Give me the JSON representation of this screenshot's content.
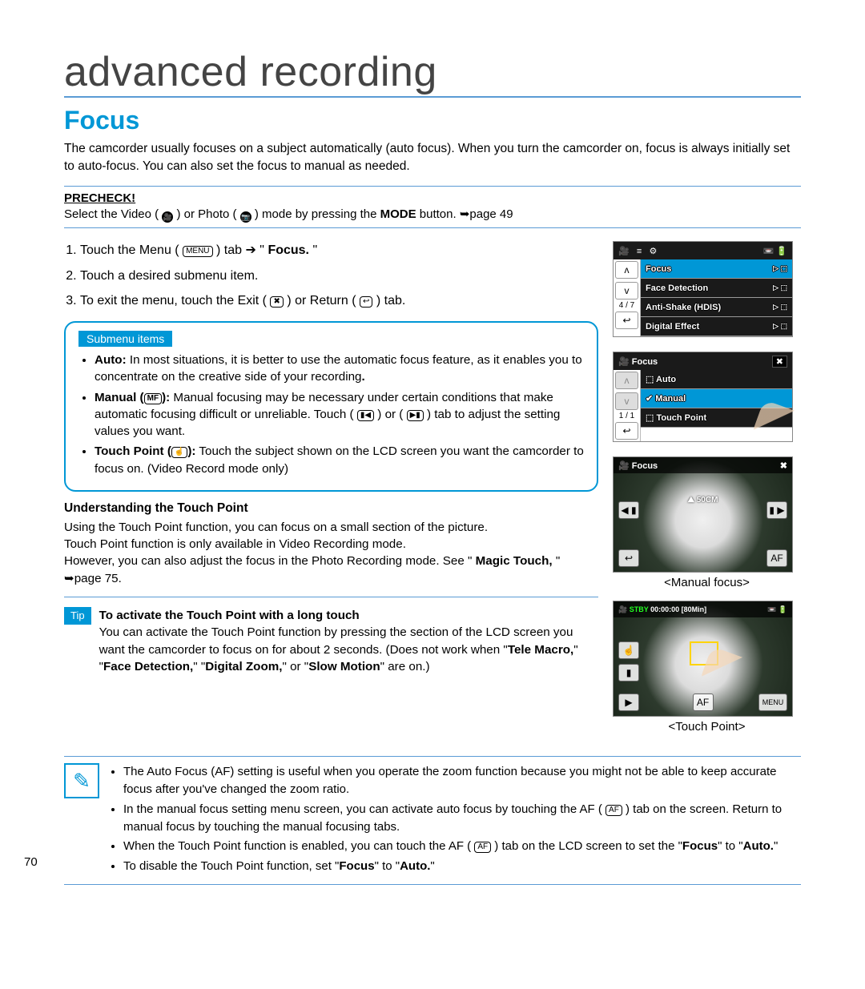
{
  "page_number": "70",
  "chapter": "advanced recording",
  "section_title": "Focus",
  "intro": "The camcorder usually focuses on a subject automatically (auto focus). When you turn the camcorder on, focus is always initially set to auto-focus. You can also set the focus to manual as needed.",
  "precheck": {
    "label": "PRECHECK!",
    "prefix": "Select the Video (",
    "mid": ") or Photo (",
    "suffix": ") mode by pressing the ",
    "mode_word": "MODE",
    "end": " button. ➥page 49"
  },
  "steps": {
    "s1_a": "Touch the Menu (",
    "s1_b": ") tab ➔ \"",
    "s1_c": "Focus.",
    "s1_d": "\"",
    "s2": "Touch a desired submenu item.",
    "s3_a": "To exit the menu, touch the Exit (",
    "s3_b": ") or Return (",
    "s3_c": ") tab."
  },
  "submenu": {
    "heading": "Submenu items",
    "auto_label": "Auto:",
    "auto_text": " In most situations, it is better to use the automatic focus feature, as it enables you to concentrate on the creative side of your recording",
    "auto_end": ".",
    "manual_label": "Manual (",
    "manual_label2": "):",
    "manual_text": " Manual focusing may be necessary under certain conditions that make automatic focusing difficult or unreliable. Touch (",
    "manual_text2": ") or (",
    "manual_text3": ") tab to adjust the setting values you want.",
    "tp_label": "Touch Point (",
    "tp_label2": "):",
    "tp_text": " Touch the subject shown on the LCD screen you want the camcorder to focus on. (Video Record mode only)"
  },
  "touchpoint": {
    "heading": "Understanding the Touch Point",
    "p1": "Using the Touch Point function, you can focus on a small section of the picture.",
    "p2": "Touch Point function is only available in Video Recording mode.",
    "p3a": "However, you can also adjust the focus in the Photo Recording mode. See \"",
    "p3b": "Magic Touch,",
    "p3c": "\" ➥page 75."
  },
  "tip": {
    "pill": "Tip",
    "heading": "To activate the Touch Point with a long touch",
    "t1": "You can activate the Touch Point function by pressing the section of the LCD screen you want the camcorder to focus on for about 2 seconds. (Does not work when \"",
    "b1": "Tele Macro,",
    "q1": "\" \"",
    "b2": "Face Detection,",
    "q2": "\" \"",
    "b3": "Digital Zoom,",
    "q3": "\" or \"",
    "b4": "Slow Motion",
    "t2": "\" are on.)"
  },
  "notes": {
    "n1": "The Auto Focus (AF) setting is useful when you operate the zoom function because you might not be able to keep accurate focus after you've changed the zoom ratio.",
    "n2a": "In the manual focus setting menu screen, you can activate auto focus by touching the AF (",
    "n2b": ") tab on the screen. Return to manual focus by touching the manual focusing tabs.",
    "n3a": "When the Touch Point function is enabled, you can touch the AF (",
    "n3b": ") tab on the LCD screen to set the \"",
    "n3c": "Focus",
    "n3d": "\" to \"",
    "n3e": "Auto.",
    "n3f": "\"",
    "n4a": "To disable the Touch Point function, set \"",
    "n4b": "Focus",
    "n4c": "\" to \"",
    "n4d": "Auto.",
    "n4e": "\""
  },
  "lcd1": {
    "rows": [
      "Focus",
      "Face Detection",
      "Anti-Shake (HDIS)",
      "Digital Effect"
    ],
    "page": "4 / 7"
  },
  "lcd2": {
    "title": "Focus",
    "rows": [
      "Auto",
      "Manual",
      "Touch Point"
    ],
    "page": "1 / 1",
    "hilite_index": 1
  },
  "lcd3": {
    "title": "Focus",
    "distance": "50CM",
    "caption": "<Manual focus>"
  },
  "lcd4": {
    "stby": "STBY",
    "time": "00:00:00",
    "remain": "[80Min]",
    "menu": "MENU",
    "caption": "<Touch Point>"
  },
  "icons": {
    "video": "🎥",
    "photo": "📷",
    "menu": "MENU",
    "exit": "✖",
    "return": "↩",
    "mf": "MF",
    "near": "▮◀",
    "far": "▶▮",
    "tp": "☝",
    "af": "AF"
  },
  "colors": {
    "accent": "#0097d6",
    "rule": "#5b9bd5"
  }
}
